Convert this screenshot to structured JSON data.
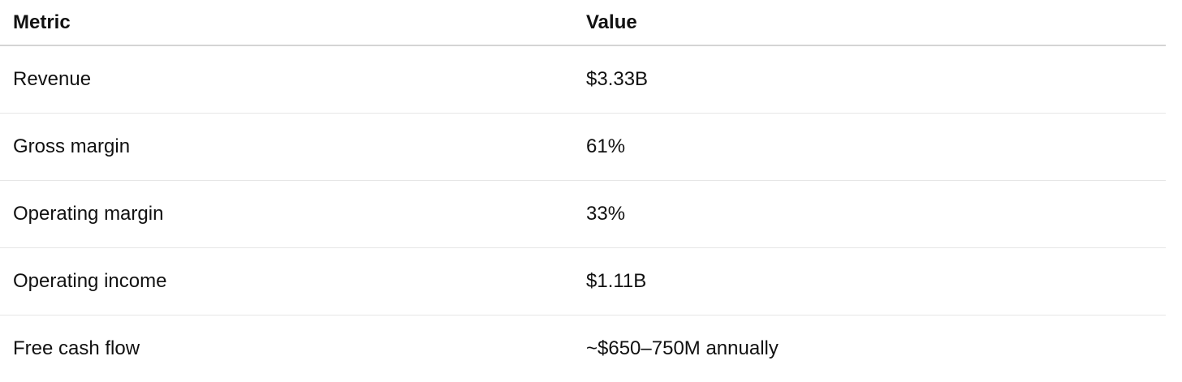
{
  "table": {
    "header": [
      "Metric",
      "Value"
    ],
    "rows": [
      [
        "Revenue",
        "$3.33B"
      ],
      [
        "Gross margin",
        "61%"
      ],
      [
        "Operating margin",
        "33%"
      ],
      [
        "Operating income",
        "$1.11B"
      ],
      [
        "Free cash flow",
        "~$650–750M annually"
      ]
    ]
  }
}
